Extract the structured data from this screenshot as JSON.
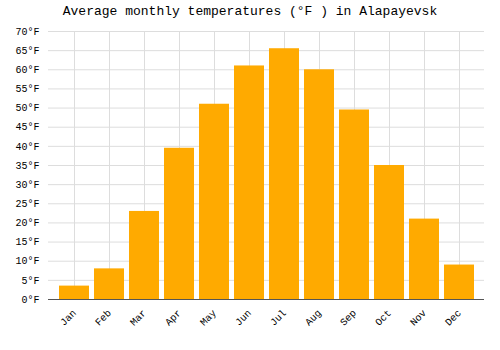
{
  "chart_data": {
    "type": "bar",
    "title": "Average monthly temperatures (°F ) in Alapayevsk",
    "categories": [
      "Jan",
      "Feb",
      "Mar",
      "Apr",
      "May",
      "Jun",
      "Jul",
      "Aug",
      "Sep",
      "Oct",
      "Nov",
      "Dec"
    ],
    "values": [
      3.5,
      8,
      23,
      39.5,
      51,
      61,
      65.5,
      60,
      49.5,
      35,
      21,
      9
    ],
    "color": "#FFAA00",
    "ylim": [
      0,
      70
    ],
    "yticks": [
      {
        "value": 0,
        "label": "0°F"
      },
      {
        "value": 5,
        "label": "5°F"
      },
      {
        "value": 10,
        "label": "10°F"
      },
      {
        "value": 15,
        "label": "15°F"
      },
      {
        "value": 20,
        "label": "20°F"
      },
      {
        "value": 25,
        "label": "25°F"
      },
      {
        "value": 30,
        "label": "30°F"
      },
      {
        "value": 35,
        "label": "35°F"
      },
      {
        "value": 40,
        "label": "40°F"
      },
      {
        "value": 45,
        "label": "45°F"
      },
      {
        "value": 50,
        "label": "50°F"
      },
      {
        "value": 55,
        "label": "55°F"
      },
      {
        "value": 60,
        "label": "60°F"
      },
      {
        "value": 65,
        "label": "65°F"
      },
      {
        "value": 70,
        "label": "70°F"
      }
    ],
    "grid": true
  }
}
